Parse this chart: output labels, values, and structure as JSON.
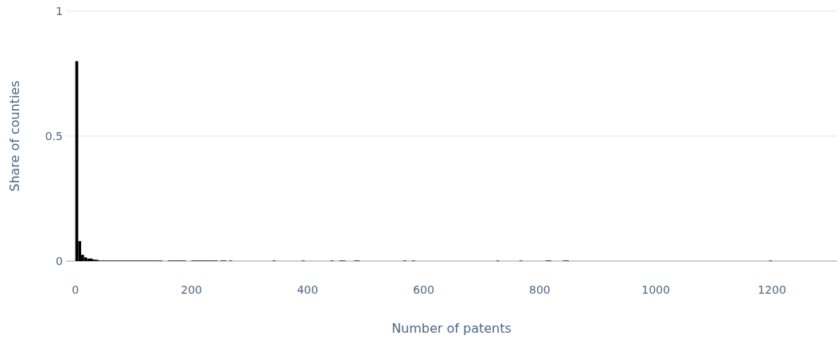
{
  "chart_data": {
    "type": "histogram",
    "xlabel": "Number of patents",
    "ylabel": "Share of counties",
    "color": "#000000",
    "bins": [
      0,
      5,
      10,
      15,
      20,
      25,
      30,
      35,
      40,
      45,
      50,
      55,
      60,
      65,
      70,
      75,
      80,
      85,
      90,
      95,
      100,
      105,
      110,
      115,
      120,
      125,
      130,
      135,
      140,
      145,
      150,
      155,
      160,
      165,
      170,
      175,
      180,
      185,
      190,
      195,
      200,
      205,
      210,
      215,
      220,
      225,
      230,
      235,
      240,
      245,
      250,
      255,
      260,
      265,
      270,
      275,
      280,
      285,
      290,
      295,
      300,
      305,
      310,
      315,
      320,
      325,
      330,
      335,
      340,
      345,
      350,
      355,
      360,
      365,
      370,
      375,
      380,
      385,
      390,
      395,
      400,
      405,
      410,
      415,
      420,
      425,
      430,
      435,
      440,
      445,
      450,
      455,
      460,
      465,
      470,
      475,
      480,
      485,
      490,
      495,
      500,
      505,
      510,
      515,
      520,
      525,
      530,
      535,
      540,
      545,
      550,
      555,
      560,
      565,
      570,
      575,
      580,
      585,
      590,
      595,
      600,
      605,
      610,
      615,
      620,
      625,
      630,
      635,
      640,
      645,
      650,
      655,
      660,
      665,
      670,
      675,
      680,
      685,
      690,
      695,
      700,
      705,
      710,
      715,
      720,
      725,
      730,
      735,
      740,
      745,
      750,
      755,
      760,
      765,
      770,
      775,
      780,
      785,
      790,
      795,
      800,
      805,
      810,
      815,
      820,
      825,
      830,
      835,
      840,
      845,
      850,
      855,
      860,
      865,
      870,
      875,
      880,
      885,
      890,
      895,
      900,
      905,
      910,
      915,
      920,
      925,
      930,
      935,
      940,
      945,
      950,
      955,
      960,
      965,
      970,
      975,
      980,
      985,
      990,
      995,
      1000,
      1005,
      1010,
      1015,
      1020,
      1025,
      1030,
      1035,
      1040,
      1045,
      1050,
      1055,
      1060,
      1065,
      1070,
      1075,
      1080,
      1085,
      1090,
      1095,
      1100,
      1105,
      1110,
      1115,
      1120,
      1125,
      1130,
      1135,
      1140,
      1145,
      1150,
      1155,
      1160,
      1165,
      1170,
      1175,
      1180,
      1185,
      1190,
      1195,
      1200
    ],
    "values": [
      0.8,
      0.08,
      0.025,
      0.015,
      0.01,
      0.01,
      0.006,
      0.005,
      0.002,
      0.002,
      0.002,
      0.002,
      0.002,
      0.002,
      0.002,
      0.002,
      0.002,
      0.002,
      0.002,
      0.002,
      0.002,
      0.002,
      0.002,
      0.002,
      0.002,
      0.002,
      0.002,
      0.002,
      0.002,
      0.002,
      0,
      0,
      0.002,
      0.002,
      0.002,
      0.002,
      0.002,
      0.002,
      0,
      0,
      0.002,
      0.002,
      0.002,
      0.002,
      0.002,
      0.002,
      0.002,
      0.002,
      0.002,
      0,
      0.002,
      0.002,
      0,
      0.002,
      0,
      0,
      0,
      0,
      0,
      0,
      0,
      0,
      0,
      0,
      0,
      0,
      0,
      0,
      0.002,
      0,
      0,
      0,
      0,
      0,
      0,
      0,
      0,
      0,
      0.002,
      0,
      0,
      0,
      0,
      0,
      0,
      0,
      0,
      0,
      0.002,
      0,
      0,
      0.002,
      0.002,
      0,
      0,
      0,
      0.002,
      0.002,
      0,
      0,
      0,
      0,
      0,
      0,
      0,
      0,
      0,
      0,
      0,
      0,
      0,
      0,
      0,
      0.002,
      0,
      0,
      0.002,
      0,
      0,
      0,
      0,
      0,
      0,
      0,
      0,
      0,
      0,
      0,
      0,
      0,
      0,
      0,
      0,
      0,
      0,
      0,
      0,
      0,
      0,
      0,
      0,
      0,
      0,
      0,
      0,
      0.002,
      0,
      0,
      0,
      0,
      0,
      0,
      0,
      0.002,
      0,
      0,
      0,
      0,
      0,
      0,
      0,
      0,
      0.002,
      0.002,
      0,
      0,
      0,
      0,
      0.002,
      0.002,
      0,
      0,
      0,
      0,
      0,
      0,
      0,
      0,
      0,
      0,
      0,
      0,
      0,
      0,
      0,
      0,
      0,
      0,
      0,
      0,
      0,
      0,
      0,
      0,
      0,
      0,
      0,
      0,
      0,
      0,
      0,
      0,
      0,
      0,
      0,
      0,
      0,
      0,
      0,
      0,
      0,
      0,
      0,
      0,
      0,
      0,
      0,
      0,
      0,
      0,
      0,
      0,
      0,
      0,
      0,
      0,
      0,
      0,
      0,
      0,
      0,
      0,
      0,
      0,
      0,
      0,
      0,
      0,
      0,
      0.002
    ],
    "xlim": [
      -16,
      1312
    ],
    "xticks": [
      0,
      200,
      400,
      600,
      800,
      1000,
      1200
    ],
    "ylim": [
      0,
      1
    ],
    "yticks": [
      0,
      0.5,
      1
    ],
    "grid": "y"
  }
}
